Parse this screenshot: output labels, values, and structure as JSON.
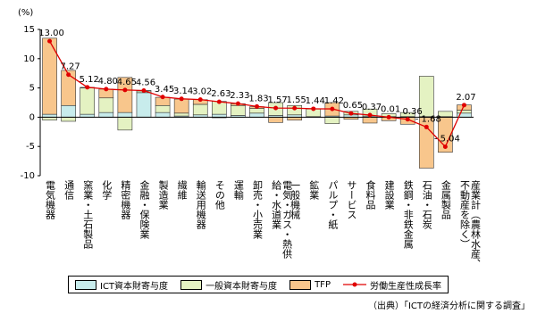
{
  "chart_data": {
    "type": "bar",
    "y_unit": "(%)",
    "categories": [
      "電気機器",
      "通信",
      "窯業・土石製品",
      "化学",
      "精密機器",
      "金融・保険業",
      "製造業",
      "繊維",
      "輸送用機器",
      "その他",
      "運輸",
      "卸売・小売業",
      "電気・ガス・熱供給・水道業",
      "一般機械",
      "鉱業",
      "パルプ・紙",
      "サービス",
      "食料品",
      "建設業",
      "鉄鋼・非鉄金属",
      "石油・石炭",
      "金属製品",
      "産業計（農林水産、不動産を除く）"
    ],
    "series": [
      {
        "name": "ICT資本財寄与度",
        "color": "#c8ecec",
        "values": [
          0.5,
          2.0,
          0.5,
          0.8,
          0.8,
          4.2,
          0.8,
          0.2,
          0.4,
          0.5,
          0.3,
          0.7,
          0.3,
          0.4,
          0.1,
          0.2,
          0.4,
          0.2,
          0.1,
          0.1,
          0.1,
          0.1,
          0.7
        ]
      },
      {
        "name": "一般資本財寄与度",
        "color": "#e4f2c2",
        "values": [
          -0.5,
          -0.7,
          4.5,
          2.5,
          -2.2,
          0.3,
          1.2,
          0.5,
          1.8,
          2.2,
          1.7,
          0.8,
          2.2,
          1.6,
          1.3,
          -1.1,
          0.6,
          1.2,
          0.5,
          0.7,
          6.9,
          0.9,
          0.5
        ]
      },
      {
        "name": "TFP",
        "color": "#f8c68c",
        "values": [
          13.0,
          6.0,
          0.1,
          1.5,
          6.0,
          0.06,
          1.4,
          2.4,
          0.8,
          -0.1,
          0.3,
          0.3,
          -0.9,
          -0.5,
          0,
          2.3,
          -0.35,
          -1.0,
          -0.6,
          -1.2,
          -8.7,
          -6.0,
          0.9
        ]
      },
      {
        "name": "労働生産性成長率",
        "type": "line",
        "color": "#e00000",
        "values": [
          13.0,
          7.27,
          5.12,
          4.8,
          4.65,
          4.56,
          3.45,
          3.14,
          3.02,
          2.63,
          2.33,
          1.83,
          1.57,
          1.55,
          1.44,
          1.42,
          0.65,
          0.37,
          0.01,
          -0.36,
          -1.68,
          -5.04,
          2.07
        ],
        "value_labels": [
          "13.00",
          "7.27",
          "5.12",
          "4.80",
          "4.65",
          "4.56",
          "3.45",
          "3.14",
          "3.02",
          "2.63",
          "2.33",
          "1.83",
          "1.57",
          "1.55",
          "1.44",
          "1.42",
          "0.65",
          "0.37",
          "0.01",
          "- 0.36",
          "- 1.68",
          "- 5.04",
          "2.07"
        ]
      }
    ],
    "ylim": [
      -10,
      15
    ],
    "yticks": [
      15,
      10,
      5,
      0,
      -5,
      -10
    ],
    "grid": false
  },
  "source": "（出典）「ICTの経済分析に関する調査」"
}
